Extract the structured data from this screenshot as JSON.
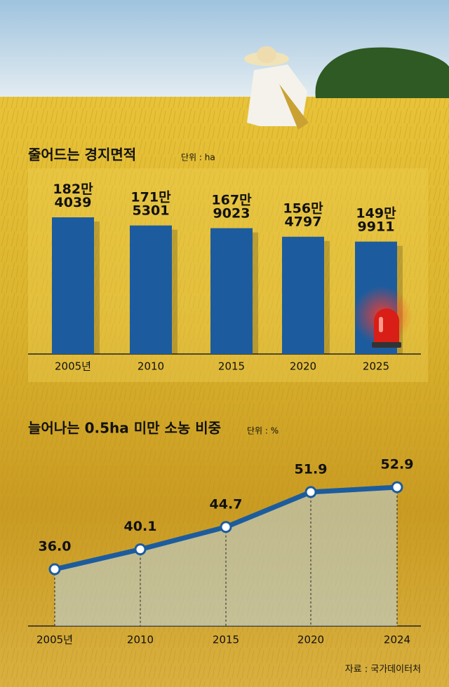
{
  "chart_data": [
    {
      "type": "bar",
      "title": "줄어드는 경지면적",
      "unit": "단위 : ha",
      "categories": [
        "2005년",
        "2010",
        "2015",
        "2020",
        "2025"
      ],
      "values": [
        1824039,
        1715301,
        1679023,
        1564797,
        1499911
      ],
      "value_labels": [
        "182만\n4039",
        "171만\n5301",
        "167만\n9023",
        "156만\n4797",
        "149만\n9911"
      ],
      "color": "#1c5c9e"
    },
    {
      "type": "line",
      "title": "늘어나는 0.5ha 미만 소농 비중",
      "unit": "단위 : %",
      "categories": [
        "2005년",
        "2010",
        "2015",
        "2020",
        "2024"
      ],
      "values": [
        36.0,
        40.1,
        44.7,
        51.9,
        52.9
      ],
      "value_labels": [
        "36.0",
        "40.1",
        "44.7",
        "51.9",
        "52.9"
      ],
      "color": "#1c5c9e"
    }
  ],
  "source": "자료 : 국가데이터처"
}
